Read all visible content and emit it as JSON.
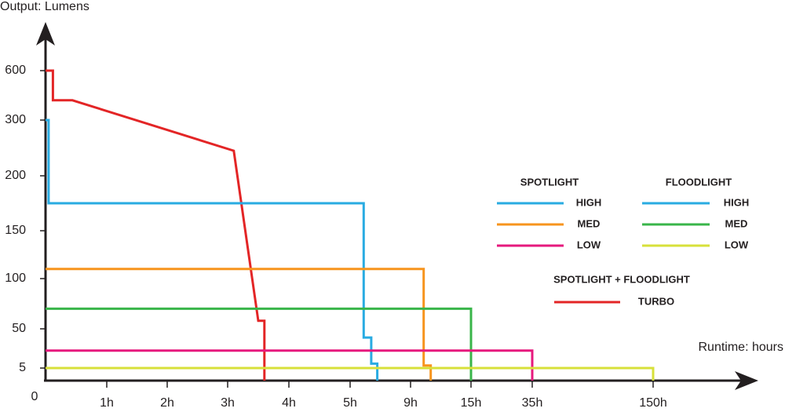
{
  "chart_data": {
    "type": "line",
    "y_label": "Output: Lumens",
    "x_label": "Runtime: hours",
    "ylim": [
      0,
      600
    ],
    "yticks": [
      5,
      50,
      100,
      150,
      200,
      300,
      600
    ],
    "xlim": [
      0,
      150
    ],
    "xticks": [
      0,
      {
        "value": 1,
        "label": "1h"
      },
      {
        "value": 2,
        "label": "2h"
      },
      {
        "value": 3,
        "label": "3h"
      },
      {
        "value": 4,
        "label": "4h"
      },
      {
        "value": 5,
        "label": "5h"
      },
      {
        "value": 9,
        "label": "9h"
      },
      {
        "value": 15,
        "label": "15h"
      },
      {
        "value": 35,
        "label": "35h"
      },
      {
        "value": 150,
        "label": "150h"
      }
    ],
    "series": [
      {
        "color": "#e32526",
        "x": [
          0,
          0.12,
          0.12,
          0.44,
          3.1,
          3.5,
          3.6,
          3.6
        ],
        "values": [
          600,
          600,
          420,
          420,
          245,
          58,
          58,
          0
        ]
      },
      {
        "color": "#29abe2",
        "x": [
          0,
          0.05,
          0.05,
          5.9,
          5.9,
          6.4,
          6.4,
          6.8,
          6.8
        ],
        "values": [
          300,
          300,
          175,
          175,
          40,
          40,
          10,
          10,
          0
        ]
      },
      {
        "color": "#f7941d",
        "x": [
          0,
          10.3,
          10.3,
          11,
          11
        ],
        "values": [
          110,
          110,
          8,
          8,
          0
        ]
      },
      {
        "color": "#39b54a",
        "x": [
          0,
          15,
          15
        ],
        "values": [
          70,
          70,
          0
        ]
      },
      {
        "color": "#e6197d",
        "x": [
          0,
          35,
          35
        ],
        "values": [
          25,
          25,
          0
        ]
      },
      {
        "color": "#d7e03a",
        "x": [
          0,
          150,
          150
        ],
        "values": [
          5,
          5,
          0
        ]
      }
    ],
    "legend": {
      "groups": [
        {
          "title": "SPOTLIGHT",
          "entries": [
            {
              "label": "HIGH",
              "color": "#29abe2"
            },
            {
              "label": "MED",
              "color": "#f7941d"
            },
            {
              "label": "LOW",
              "color": "#e6197d"
            }
          ]
        },
        {
          "title": "FLOODLIGHT",
          "entries": [
            {
              "label": "HIGH",
              "color": "#29abe2"
            },
            {
              "label": "MED",
              "color": "#39b54a"
            },
            {
              "label": "LOW",
              "color": "#d7e03a"
            }
          ]
        },
        {
          "title": "SPOTLIGHT + FLOODLIGHT",
          "entries": [
            {
              "label": "TURBO",
              "color": "#e32526"
            }
          ]
        }
      ]
    }
  }
}
